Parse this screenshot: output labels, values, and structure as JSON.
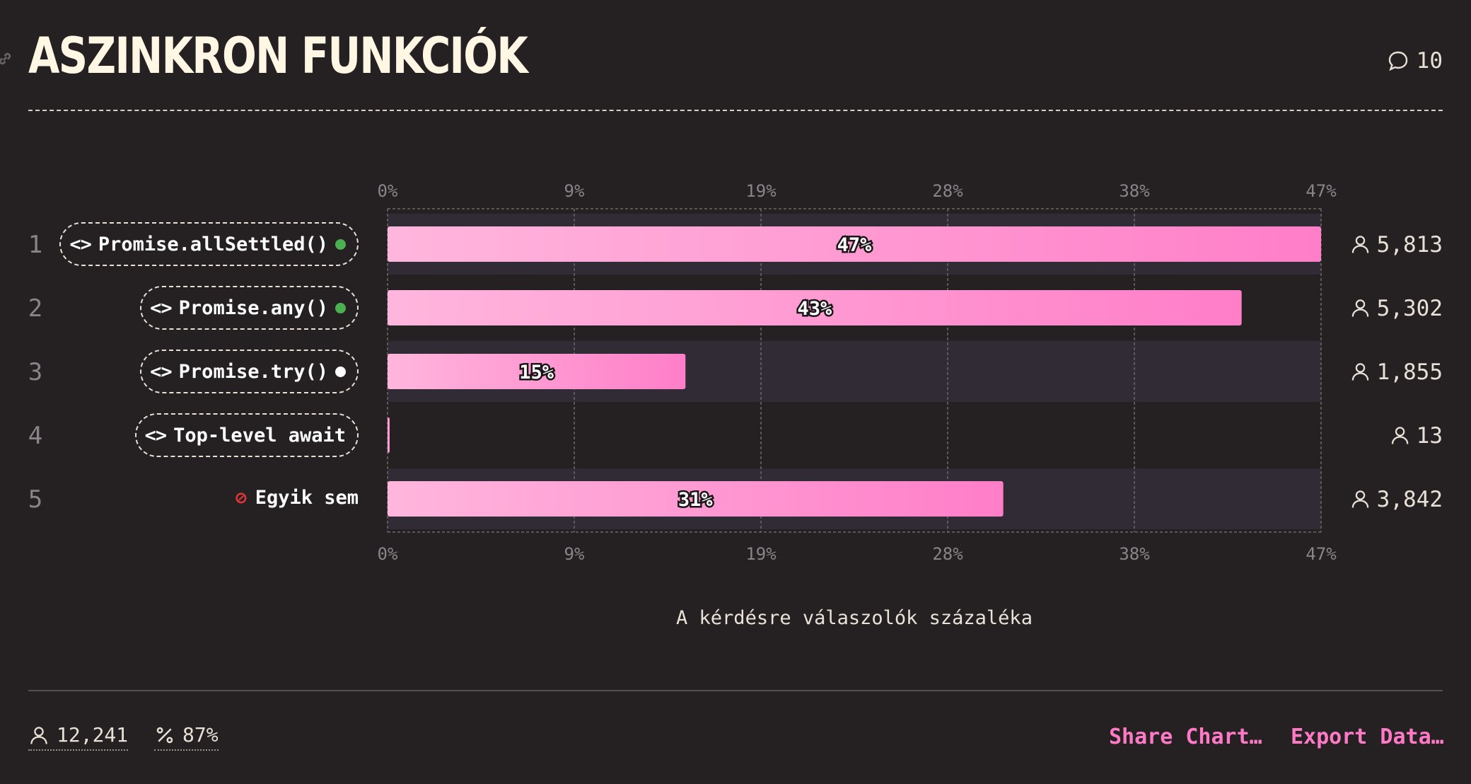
{
  "header": {
    "title": "ASZINKRON FUNKCIÓK",
    "comment_count": "10"
  },
  "chart_data": {
    "type": "bar",
    "orientation": "horizontal",
    "title": "ASZINKRON FUNKCIÓK",
    "xlabel": "A kérdésre válaszolók százaléka",
    "xlim": [
      0,
      47
    ],
    "x_ticks": [
      "0%",
      "9%",
      "19%",
      "28%",
      "38%",
      "47%"
    ],
    "grid": true,
    "categories": [
      "Promise.allSettled()",
      "Promise.any()",
      "Promise.try()",
      "Top-level await",
      "Egyik sem"
    ],
    "ranks": [
      "1",
      "2",
      "3",
      "4",
      "5"
    ],
    "values": [
      47,
      43,
      15,
      0.1,
      31
    ],
    "value_labels": [
      "47%",
      "43%",
      "15%",
      "",
      "31%"
    ],
    "counts": [
      "5,813",
      "5,302",
      "1,855",
      "13",
      "3,842"
    ],
    "status_dots": [
      "#4caf50",
      "#4caf50",
      "#ffffff",
      null,
      null
    ],
    "bar_gradient": [
      "#ffb6dd",
      "#ff7ec8"
    ]
  },
  "footer": {
    "respondents": "12,241",
    "percent": "87%",
    "share_label": "Share Chart…",
    "export_label": "Export Data…"
  },
  "icons": {
    "comment": "speech-bubble-icon",
    "user": "user-icon",
    "percent": "percent-icon",
    "code": "code-brackets-icon",
    "none": "ban-icon",
    "link": "link-icon"
  }
}
